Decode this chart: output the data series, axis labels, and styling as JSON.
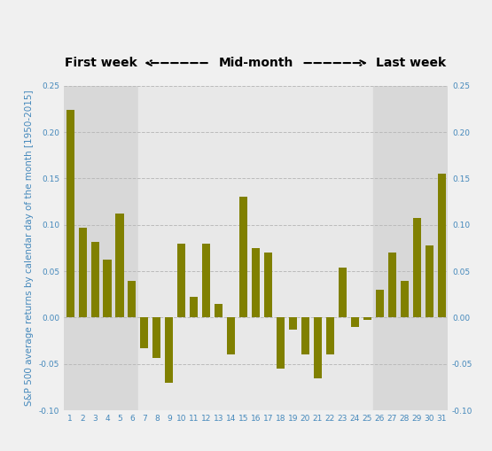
{
  "days": [
    1,
    2,
    3,
    4,
    5,
    6,
    7,
    8,
    9,
    10,
    11,
    12,
    13,
    14,
    15,
    16,
    17,
    18,
    19,
    20,
    21,
    22,
    23,
    24,
    25,
    26,
    27,
    28,
    29,
    30,
    31
  ],
  "values": [
    0.224,
    0.097,
    0.082,
    0.063,
    0.112,
    0.04,
    -0.033,
    -0.043,
    -0.07,
    0.08,
    0.022,
    0.08,
    0.015,
    -0.04,
    0.13,
    0.075,
    0.07,
    -0.055,
    -0.013,
    -0.04,
    -0.065,
    -0.04,
    0.054,
    -0.01,
    -0.002,
    0.03,
    0.07,
    0.04,
    0.107,
    0.078,
    0.155
  ],
  "bar_color": "#808000",
  "plot_bg": "#e8e8e8",
  "first_week_bg": "#d8d8d8",
  "mid_month_bg": "#e8e8e8",
  "last_week_bg": "#d8d8d8",
  "figure_bg": "#f0f0f0",
  "ylabel": "S&P 500 average returns by calendar day of the month [1950-2015]",
  "ylim": [
    -0.1,
    0.25
  ],
  "yticks": [
    -0.1,
    -0.05,
    0.0,
    0.05,
    0.1,
    0.15,
    0.2,
    0.25
  ],
  "first_week_label": "First week",
  "mid_month_label": "Mid-month",
  "last_week_label": "Last week",
  "grid_color": "#bbbbbb",
  "tick_color": "#4488bb",
  "ylabel_color": "#4488bb"
}
